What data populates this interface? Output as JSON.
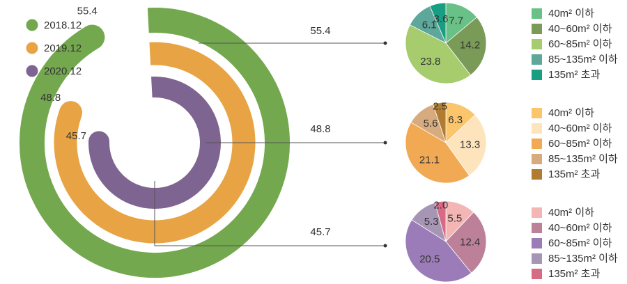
{
  "chart_data": [
    {
      "type": "radial_bar",
      "series": [
        {
          "name": "2018.12",
          "value": 55.4,
          "color": "#74a84f"
        },
        {
          "name": "2019.12",
          "value": 48.8,
          "color": "#e8a444"
        },
        {
          "name": "2020.12",
          "value": 45.7,
          "color": "#7e6591"
        }
      ],
      "legend": "top-left"
    },
    {
      "type": "pie",
      "total_label": "55.4",
      "categories": [
        "40m² 이하",
        "40~60m² 이하",
        "60~85m² 이하",
        "85~135m² 이하",
        "135m² 초과"
      ],
      "values": [
        7.7,
        14.2,
        23.8,
        6.1,
        3.6
      ],
      "colors": [
        "#69c187",
        "#7a9a57",
        "#a6cc6e",
        "#5ea79b",
        "#1a9e83"
      ],
      "legend": "right"
    },
    {
      "type": "pie",
      "total_label": "48.8",
      "categories": [
        "40m² 이하",
        "40~60m² 이하",
        "60~85m² 이하",
        "85~135m² 이하",
        "135m² 초과"
      ],
      "values": [
        6.3,
        13.3,
        21.1,
        5.6,
        2.5
      ],
      "colors": [
        "#fbc56c",
        "#fde4bd",
        "#f2a954",
        "#d7ab7e",
        "#b07c31"
      ],
      "legend": "right"
    },
    {
      "type": "pie",
      "total_label": "45.7",
      "categories": [
        "40m² 이하",
        "40~60m² 이하",
        "60~85m² 이하",
        "85~135m² 이하",
        "135m² 초과"
      ],
      "values": [
        5.5,
        12.4,
        20.5,
        5.3,
        2.0
      ],
      "colors": [
        "#f4b5b5",
        "#bc8198",
        "#9b7cb8",
        "#a695b4",
        "#d66b86"
      ],
      "legend": "right"
    }
  ]
}
